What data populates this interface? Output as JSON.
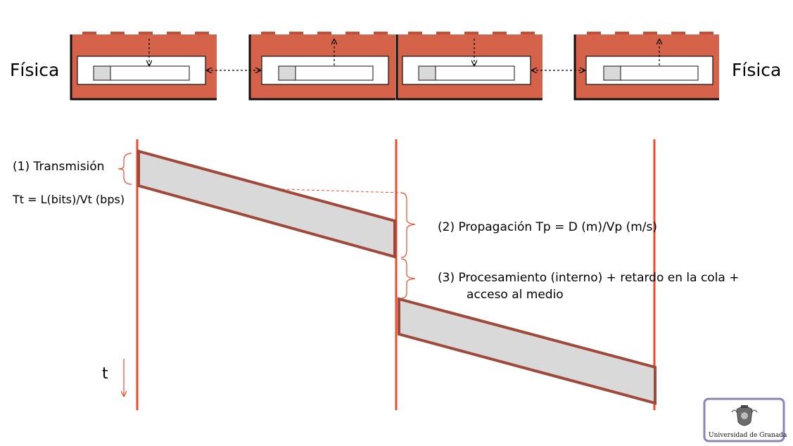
{
  "diagram": {
    "layer_left": "Física",
    "layer_right": "Física",
    "annotation_1": "(1) Transmisión",
    "formula_1": "Tt = L(bits)/Vt (bps)",
    "annotation_2": "(2) Propagación  Tp = D (m)/Vp (m/s)",
    "annotation_3_line1": "(3) Procesamiento (interno) + retardo en la cola +",
    "annotation_3_line2": "acceso al medio",
    "time_axis_label": "t"
  },
  "logo": {
    "caption": "Universidad de Granada"
  },
  "colors": {
    "box_fill": "#D4634A",
    "box_border": "#111111",
    "timeline": "#EE4B2B",
    "packet_fill": "#D9D9D9",
    "packet_border": "#A0483A",
    "logo_border": "#8A84B8"
  }
}
